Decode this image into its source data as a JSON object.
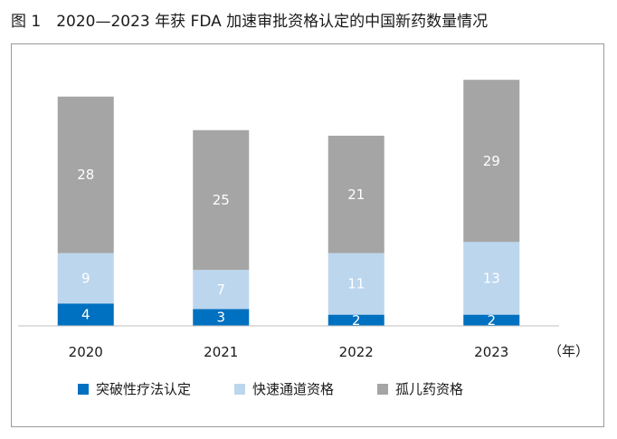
{
  "figure": {
    "title": "图 1　2020—2023 年获 FDA 加速审批资格认定的中国新药数量情况"
  },
  "chart_data": {
    "type": "bar",
    "stacked": true,
    "categories": [
      "2020",
      "2021",
      "2022",
      "2023"
    ],
    "x_unit": "（年）",
    "series": [
      {
        "name": "突破性疗法认定",
        "values": [
          4,
          3,
          2,
          2
        ],
        "color": "#0070c0"
      },
      {
        "name": "快速通道资格",
        "values": [
          9,
          7,
          11,
          13
        ],
        "color": "#bcd6ee"
      },
      {
        "name": "孤儿药资格",
        "values": [
          28,
          25,
          21,
          29
        ],
        "color": "#a5a5a5"
      }
    ],
    "ylim": [
      0,
      45
    ],
    "legend": "bottom",
    "grid": false
  }
}
